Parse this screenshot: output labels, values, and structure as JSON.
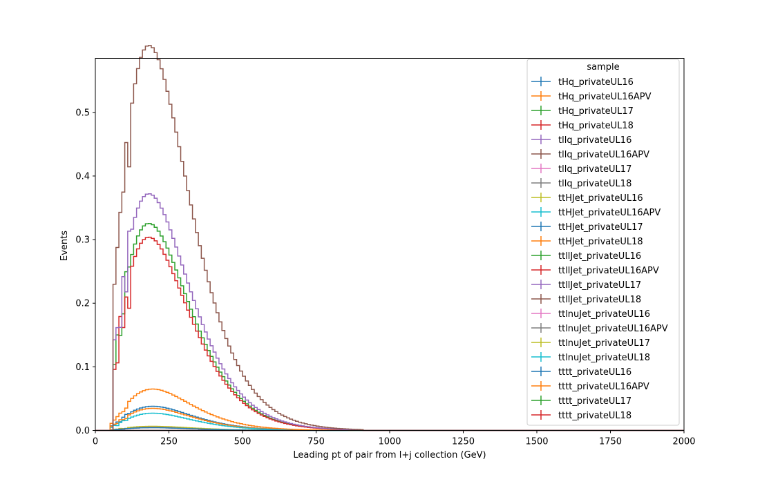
{
  "chart_data": {
    "type": "line",
    "xlabel": "Leading pt of pair from l+j collection (GeV)",
    "ylabel": "Events",
    "xlim": [
      0,
      2000
    ],
    "ylim": [
      0,
      0.585
    ],
    "x_ticks": [
      "0",
      "250",
      "500",
      "750",
      "1000",
      "1250",
      "1500",
      "1750",
      "2000"
    ],
    "y_ticks": [
      "0.0",
      "0.1",
      "0.2",
      "0.3",
      "0.4",
      "0.5"
    ],
    "legend_title": "sample",
    "legend_position": "top-right",
    "grid": false,
    "bin_width": 10,
    "series": [
      {
        "name": "tHq_privateUL16",
        "color": "#1f77b4",
        "shape": "none"
      },
      {
        "name": "tHq_privateUL16APV",
        "color": "#ff7f0e",
        "shape": "none"
      },
      {
        "name": "tHq_privateUL17",
        "color": "#2ca02c",
        "shape": "none"
      },
      {
        "name": "tHq_privateUL18",
        "color": "#d62728",
        "shape": "none"
      },
      {
        "name": "tllq_privateUL16",
        "color": "#9467bd",
        "shape": "none"
      },
      {
        "name": "tllq_privateUL16APV",
        "color": "#8c564b",
        "shape": "none"
      },
      {
        "name": "tllq_privateUL17",
        "color": "#e377c2",
        "shape": "none"
      },
      {
        "name": "tllq_privateUL18",
        "color": "#7f7f7f",
        "shape": "none"
      },
      {
        "name": "ttHJet_privateUL16",
        "color": "#bcbd22",
        "shape": "none"
      },
      {
        "name": "ttHJet_privateUL16APV",
        "color": "#17becf",
        "shape": "none"
      },
      {
        "name": "ttHJet_privateUL17",
        "color": "#1f77b4",
        "shape": "ttH",
        "peak": 0.035
      },
      {
        "name": "ttHJet_privateUL18",
        "color": "#ff7f0e",
        "shape": "ttH",
        "peak": 0.032
      },
      {
        "name": "ttllJet_privateUL16",
        "color": "#2ca02c",
        "shape": "none"
      },
      {
        "name": "ttllJet_privateUL16APV",
        "color": "#d62728",
        "shape": "none"
      },
      {
        "name": "ttllJet_privateUL17",
        "color": "#9467bd",
        "shape": "none"
      },
      {
        "name": "ttllJet_privateUL18",
        "color": "#8c564b",
        "shape": "none"
      },
      {
        "name": "ttlnuJet_privateUL16",
        "color": "#e377c2",
        "shape": "low",
        "peak": 0.005
      },
      {
        "name": "ttlnuJet_privateUL16APV",
        "color": "#7f7f7f",
        "shape": "low",
        "peak": 0.004
      },
      {
        "name": "ttlnuJet_privateUL17",
        "color": "#bcbd22",
        "shape": "low",
        "peak": 0.006
      },
      {
        "name": "ttlnuJet_privateUL18",
        "color": "#17becf",
        "shape": "ttH",
        "peak": 0.025
      },
      {
        "name": "tttt_privateUL16",
        "color": "#1f77b4",
        "shape": "low",
        "peak": 0.004
      },
      {
        "name": "tttt_privateUL16APV",
        "color": "#ff7f0e",
        "shape": "ttH",
        "peak": 0.06
      },
      {
        "name": "tttt_privateUL17",
        "color": "#2ca02c",
        "shape": "main",
        "peak": 0.3
      },
      {
        "name": "tttt_privateUL18",
        "color": "#d62728",
        "shape": "main",
        "peak": 0.28
      }
    ],
    "extra_curves": [
      {
        "color": "#9467bd",
        "shape": "main",
        "peak": 0.343
      },
      {
        "color": "#8c564b",
        "shape": "main",
        "peak": 0.558
      }
    ]
  }
}
